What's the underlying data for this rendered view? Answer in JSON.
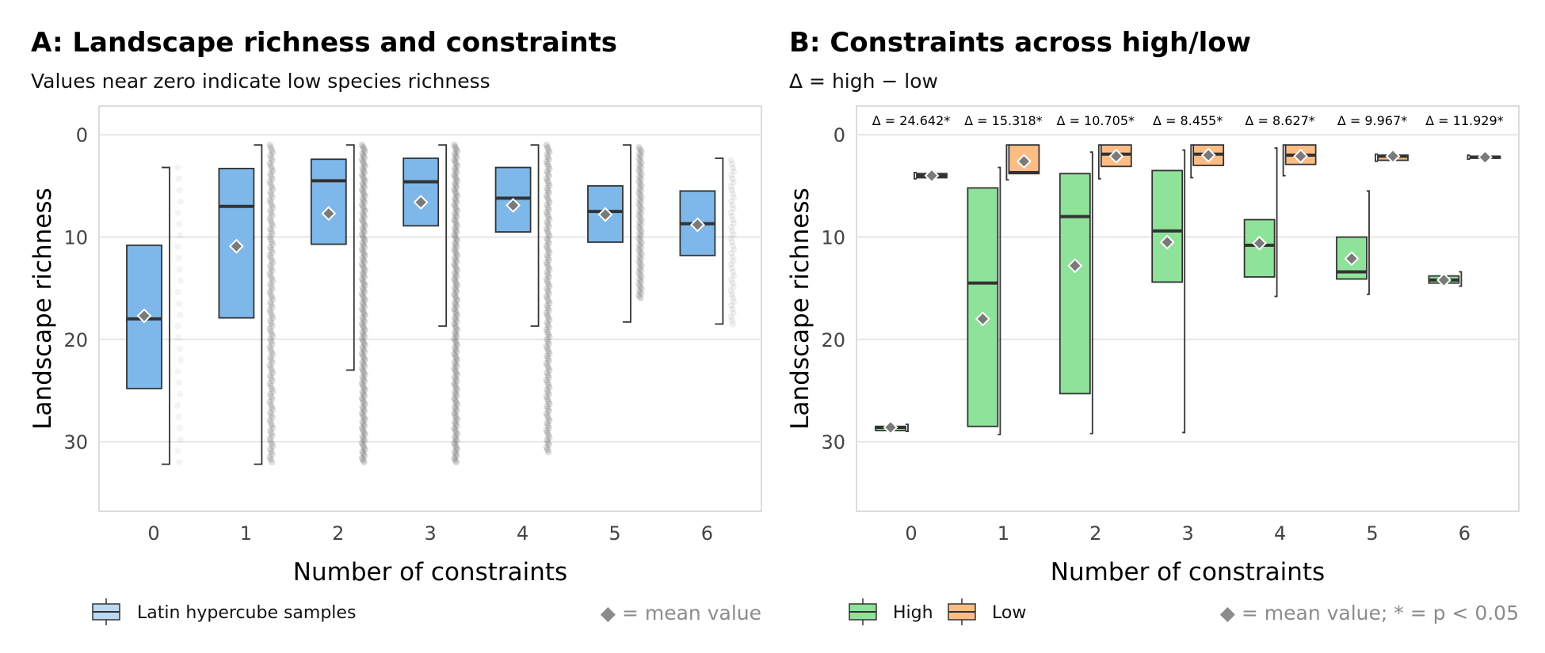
{
  "chart_data": [
    {
      "type": "box",
      "title": "A: Landscape richness and constraints",
      "subtitle": "Values near zero indicate low species richness",
      "xlabel": "Number of constraints",
      "ylabel": "Landscape richness",
      "categories": [
        "0",
        "1",
        "2",
        "3",
        "4",
        "5",
        "6"
      ],
      "y_reversed": true,
      "ylim": [
        -2.8,
        36.8
      ],
      "yticks": [
        0,
        10,
        20,
        30
      ],
      "grid": true,
      "legend_position": "bottom-left",
      "legend": [
        {
          "label": "Latin hypercube samples",
          "color": "#7eb8ea"
        }
      ],
      "note": "◆ = mean value",
      "series": [
        {
          "name": "Latin hypercube samples",
          "color": "#7eb8ea",
          "boxes": [
            {
              "q1": 10.8,
              "median": 18.0,
              "q3": 24.8,
              "whisker_low": 3.2,
              "whisker_high": 32.2,
              "mean": 17.7,
              "points_min": 3.2,
              "points_max": 32.0,
              "density": 0.12
            },
            {
              "q1": 3.3,
              "median": 7.0,
              "q3": 17.9,
              "whisker_low": 1.0,
              "whisker_high": 32.2,
              "mean": 10.9,
              "points_min": 1.0,
              "points_max": 32.0,
              "density": 0.8
            },
            {
              "q1": 2.4,
              "median": 4.5,
              "q3": 10.7,
              "whisker_low": 1.0,
              "whisker_high": 23.0,
              "mean": 7.7,
              "points_min": 1.0,
              "points_max": 32.0,
              "density": 1.0
            },
            {
              "q1": 2.3,
              "median": 4.6,
              "q3": 8.9,
              "whisker_low": 1.0,
              "whisker_high": 18.7,
              "mean": 6.6,
              "points_min": 1.0,
              "points_max": 32.0,
              "density": 1.0
            },
            {
              "q1": 3.2,
              "median": 6.2,
              "q3": 9.5,
              "whisker_low": 1.0,
              "whisker_high": 18.7,
              "mean": 6.9,
              "points_min": 1.0,
              "points_max": 31.0,
              "density": 0.85
            },
            {
              "q1": 5.0,
              "median": 7.5,
              "q3": 10.5,
              "whisker_low": 1.0,
              "whisker_high": 18.3,
              "mean": 7.8,
              "points_min": 1.2,
              "points_max": 16.0,
              "density": 0.6
            },
            {
              "q1": 5.5,
              "median": 8.7,
              "q3": 11.8,
              "whisker_low": 2.3,
              "whisker_high": 18.5,
              "mean": 8.8,
              "points_min": 2.5,
              "points_max": 18.5,
              "density": 0.25
            }
          ]
        }
      ]
    },
    {
      "type": "box",
      "title": "B: Constraints across high/low",
      "subtitle": "Δ = high − low",
      "xlabel": "Number of constraints",
      "ylabel": "Landscape richness",
      "categories": [
        "0",
        "1",
        "2",
        "3",
        "4",
        "5",
        "6"
      ],
      "y_reversed": true,
      "ylim": [
        -2.8,
        36.8
      ],
      "yticks": [
        0,
        10,
        20,
        30
      ],
      "grid": true,
      "legend_position": "bottom-left",
      "legend": [
        {
          "label": "High",
          "color": "#8fe29a"
        },
        {
          "label": "Low",
          "color": "#fcbd85"
        }
      ],
      "note": "◆ = mean value; * = p < 0.05",
      "annotations": [
        "Δ = 24.642*",
        "Δ = 15.318*",
        "Δ = 10.705*",
        "Δ = 8.455*",
        "Δ = 8.627*",
        "Δ = 9.967*",
        "Δ = 11.929*"
      ],
      "series": [
        {
          "name": "High",
          "color": "#8fe29a",
          "boxes": [
            {
              "q1": 28.5,
              "median": 28.6,
              "q3": 28.9,
              "whisker_low": 28.3,
              "whisker_high": 29.0,
              "mean": 28.6
            },
            {
              "q1": 5.2,
              "median": 14.5,
              "q3": 28.5,
              "whisker_low": 3.2,
              "whisker_high": 29.3,
              "mean": 18.0
            },
            {
              "q1": 3.8,
              "median": 8.0,
              "q3": 25.3,
              "whisker_low": 1.7,
              "whisker_high": 29.2,
              "mean": 12.8
            },
            {
              "q1": 3.5,
              "median": 9.4,
              "q3": 14.4,
              "whisker_low": 1.5,
              "whisker_high": 29.1,
              "mean": 10.5
            },
            {
              "q1": 8.3,
              "median": 10.8,
              "q3": 13.9,
              "whisker_low": 1.3,
              "whisker_high": 15.8,
              "mean": 10.6
            },
            {
              "q1": 10.0,
              "median": 13.4,
              "q3": 14.1,
              "whisker_low": 5.5,
              "whisker_high": 15.6,
              "mean": 12.1
            },
            {
              "q1": 13.8,
              "median": 14.2,
              "q3": 14.5,
              "whisker_low": 13.4,
              "whisker_high": 14.8,
              "mean": 14.2
            }
          ]
        },
        {
          "name": "Low",
          "color": "#fcbd85",
          "boxes": [
            {
              "q1": 3.8,
              "median": 4.0,
              "q3": 4.2,
              "whisker_low": 3.7,
              "whisker_high": 4.3,
              "mean": 4.0
            },
            {
              "q1": 1.0,
              "median": 3.7,
              "q3": 3.8,
              "whisker_low": 1.0,
              "whisker_high": 4.4,
              "mean": 2.6
            },
            {
              "q1": 1.0,
              "median": 1.9,
              "q3": 3.1,
              "whisker_low": 1.0,
              "whisker_high": 4.3,
              "mean": 2.1
            },
            {
              "q1": 1.0,
              "median": 1.9,
              "q3": 3.0,
              "whisker_low": 1.0,
              "whisker_high": 4.2,
              "mean": 2.0
            },
            {
              "q1": 1.0,
              "median": 2.0,
              "q3": 2.9,
              "whisker_low": 1.0,
              "whisker_high": 4.0,
              "mean": 2.1
            },
            {
              "q1": 2.0,
              "median": 2.1,
              "q3": 2.5,
              "whisker_low": 1.9,
              "whisker_high": 2.6,
              "mean": 2.1
            },
            {
              "q1": 2.1,
              "median": 2.2,
              "q3": 2.3,
              "whisker_low": 2.0,
              "whisker_high": 2.4,
              "mean": 2.2
            }
          ]
        }
      ]
    }
  ]
}
